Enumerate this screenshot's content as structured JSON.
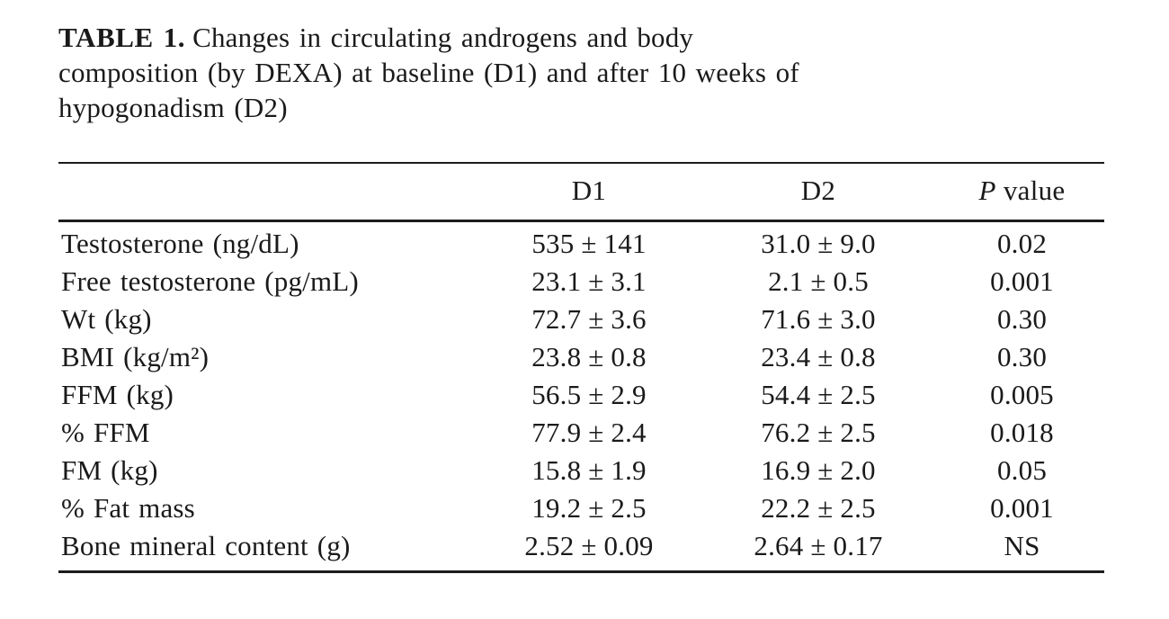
{
  "caption": {
    "label": "TABLE 1.",
    "line1": "Changes in circulating androgens and body",
    "line2": "composition (by DEXA) at baseline (D1) and after 10 weeks of",
    "line3": "hypogonadism (D2)"
  },
  "table": {
    "header": {
      "d1": "D1",
      "d2": "D2",
      "p_italic": "P",
      "p_rest": " value"
    },
    "rows": [
      {
        "parameter": "Testosterone (ng/dL)",
        "d1": "535 ± 141",
        "d2": "31.0 ± 9.0",
        "p": "0.02"
      },
      {
        "parameter": "Free testosterone (pg/mL)",
        "d1": "23.1 ± 3.1",
        "d2": "2.1 ± 0.5",
        "p": "0.001"
      },
      {
        "parameter": "Wt (kg)",
        "d1": "72.7 ± 3.6",
        "d2": "71.6 ± 3.0",
        "p": "0.30"
      },
      {
        "parameter": "BMI (kg/m²)",
        "d1": "23.8 ± 0.8",
        "d2": "23.4 ± 0.8",
        "p": "0.30"
      },
      {
        "parameter": "FFM (kg)",
        "d1": "56.5 ± 2.9",
        "d2": "54.4 ± 2.5",
        "p": "0.005"
      },
      {
        "parameter": "% FFM",
        "d1": "77.9 ± 2.4",
        "d2": "76.2 ± 2.5",
        "p": "0.018"
      },
      {
        "parameter": "FM (kg)",
        "d1": "15.8 ± 1.9",
        "d2": "16.9 ± 2.0",
        "p": "0.05"
      },
      {
        "parameter": "% Fat mass",
        "d1": "19.2 ± 2.5",
        "d2": "22.2 ± 2.5",
        "p": "0.001"
      },
      {
        "parameter": "Bone mineral content (g)",
        "d1": "2.52 ± 0.09",
        "d2": "2.64 ± 0.17",
        "p": "NS"
      }
    ]
  }
}
